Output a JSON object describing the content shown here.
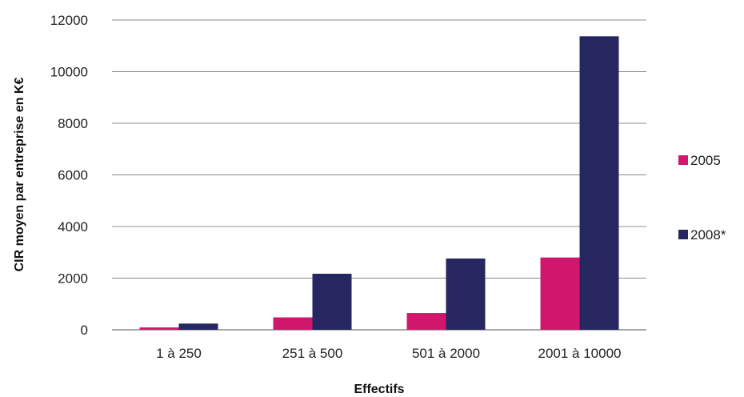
{
  "chart_data": {
    "type": "bar",
    "title": "",
    "xlabel": "Effectifs",
    "ylabel": "CIR moyen par entreprise en K€",
    "categories": [
      "1 à 250",
      "251 à 500",
      "501 à 2000",
      "2001 à 10000"
    ],
    "series": [
      {
        "name": "2005",
        "color": "#d0176e",
        "values": [
          90,
          480,
          650,
          2800
        ]
      },
      {
        "name": "2008*",
        "color": "#262660",
        "values": [
          240,
          2170,
          2760,
          11370
        ]
      }
    ],
    "ylim": [
      0,
      12000
    ],
    "yticks": [
      0,
      2000,
      4000,
      6000,
      8000,
      10000,
      12000
    ],
    "grid": true,
    "legend_position": "right"
  }
}
